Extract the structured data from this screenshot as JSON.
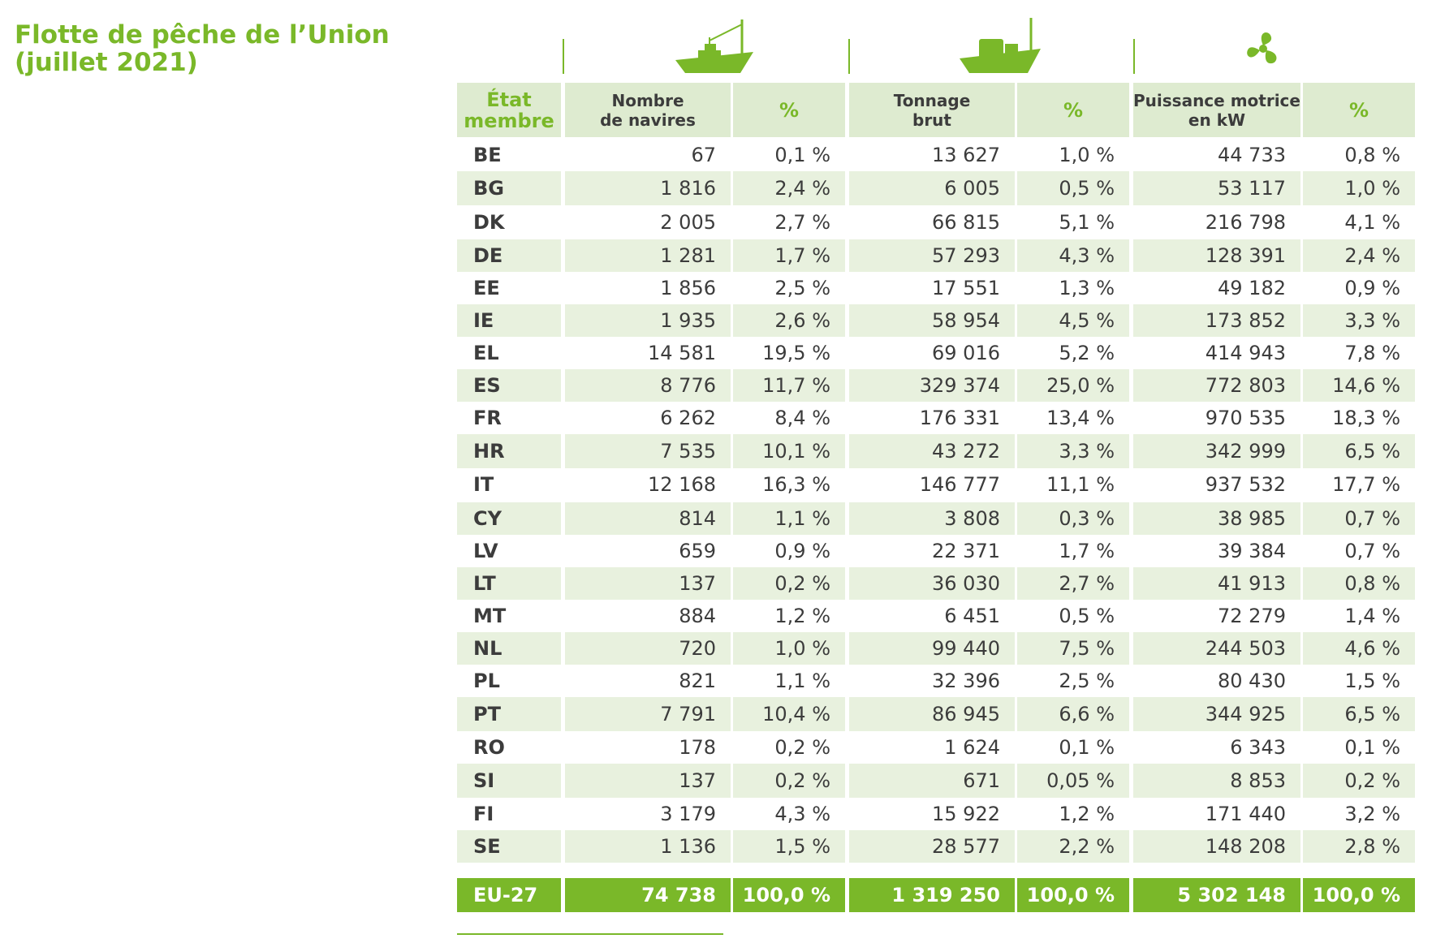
{
  "title": {
    "line1": "Flotte de pêche de l’Union",
    "line2": "(juillet 2021)"
  },
  "icons": [
    "fishing-boat-icon",
    "cargo-boat-icon",
    "propeller-icon"
  ],
  "headers": {
    "state": [
      "État",
      "membre"
    ],
    "vessels": [
      "Nombre",
      "de navires"
    ],
    "tonnage": [
      "Tonnage",
      "brut"
    ],
    "power": [
      "Puissance motrice",
      "en kW"
    ],
    "pct": "%"
  },
  "rows": [
    {
      "code": "BE",
      "vessels": "67",
      "vessels_pct": "0,1 %",
      "tonnage": "13 627",
      "tonnage_pct": "1,0 %",
      "power": "44 733",
      "power_pct": "0,8 %"
    },
    {
      "code": "BG",
      "vessels": "1 816",
      "vessels_pct": "2,4 %",
      "tonnage": "6 005",
      "tonnage_pct": "0,5 %",
      "power": "53 117",
      "power_pct": "1,0 %"
    },
    {
      "code": "DK",
      "vessels": "2 005",
      "vessels_pct": "2,7 %",
      "tonnage": "66 815",
      "tonnage_pct": "5,1 %",
      "power": "216 798",
      "power_pct": "4,1 %"
    },
    {
      "code": "DE",
      "vessels": "1 281",
      "vessels_pct": "1,7 %",
      "tonnage": "57 293",
      "tonnage_pct": "4,3 %",
      "power": "128 391",
      "power_pct": "2,4 %"
    },
    {
      "code": "EE",
      "vessels": "1 856",
      "vessels_pct": "2,5 %",
      "tonnage": "17 551",
      "tonnage_pct": "1,3 %",
      "power": "49 182",
      "power_pct": "0,9 %"
    },
    {
      "code": "IE",
      "vessels": "1 935",
      "vessels_pct": "2,6 %",
      "tonnage": "58 954",
      "tonnage_pct": "4,5 %",
      "power": "173 852",
      "power_pct": "3,3 %"
    },
    {
      "code": "EL",
      "vessels": "14 581",
      "vessels_pct": "19,5 %",
      "tonnage": "69 016",
      "tonnage_pct": "5,2 %",
      "power": "414 943",
      "power_pct": "7,8 %"
    },
    {
      "code": "ES",
      "vessels": "8 776",
      "vessels_pct": "11,7 %",
      "tonnage": "329 374",
      "tonnage_pct": "25,0 %",
      "power": "772 803",
      "power_pct": "14,6 %"
    },
    {
      "code": "FR",
      "vessels": "6 262",
      "vessels_pct": "8,4 %",
      "tonnage": "176 331",
      "tonnage_pct": "13,4 %",
      "power": "970 535",
      "power_pct": "18,3 %"
    },
    {
      "code": "HR",
      "vessels": "7 535",
      "vessels_pct": "10,1 %",
      "tonnage": "43 272",
      "tonnage_pct": "3,3 %",
      "power": "342 999",
      "power_pct": "6,5 %"
    },
    {
      "code": "IT",
      "vessels": "12 168",
      "vessels_pct": "16,3 %",
      "tonnage": "146 777",
      "tonnage_pct": "11,1 %",
      "power": "937 532",
      "power_pct": "17,7 %"
    },
    {
      "code": "CY",
      "vessels": "814",
      "vessels_pct": "1,1 %",
      "tonnage": "3 808",
      "tonnage_pct": "0,3 %",
      "power": "38 985",
      "power_pct": "0,7 %"
    },
    {
      "code": "LV",
      "vessels": "659",
      "vessels_pct": "0,9 %",
      "tonnage": "22 371",
      "tonnage_pct": "1,7 %",
      "power": "39 384",
      "power_pct": "0,7 %"
    },
    {
      "code": "LT",
      "vessels": "137",
      "vessels_pct": "0,2 %",
      "tonnage": "36 030",
      "tonnage_pct": "2,7 %",
      "power": "41 913",
      "power_pct": "0,8 %"
    },
    {
      "code": "MT",
      "vessels": "884",
      "vessels_pct": "1,2 %",
      "tonnage": "6 451",
      "tonnage_pct": "0,5 %",
      "power": "72 279",
      "power_pct": "1,4 %"
    },
    {
      "code": "NL",
      "vessels": "720",
      "vessels_pct": "1,0 %",
      "tonnage": "99 440",
      "tonnage_pct": "7,5 %",
      "power": "244 503",
      "power_pct": "4,6 %"
    },
    {
      "code": "PL",
      "vessels": "821",
      "vessels_pct": "1,1 %",
      "tonnage": "32 396",
      "tonnage_pct": "2,5 %",
      "power": "80 430",
      "power_pct": "1,5 %"
    },
    {
      "code": "PT",
      "vessels": "7 791",
      "vessels_pct": "10,4 %",
      "tonnage": "86 945",
      "tonnage_pct": "6,6 %",
      "power": "344 925",
      "power_pct": "6,5 %"
    },
    {
      "code": "RO",
      "vessels": "178",
      "vessels_pct": "0,2 %",
      "tonnage": "1 624",
      "tonnage_pct": "0,1 %",
      "power": "6 343",
      "power_pct": "0,1 %"
    },
    {
      "code": "SI",
      "vessels": "137",
      "vessels_pct": "0,2 %",
      "tonnage": "671",
      "tonnage_pct": "0,05 %",
      "power": "8 853",
      "power_pct": "0,2 %"
    },
    {
      "code": "FI",
      "vessels": "3 179",
      "vessels_pct": "4,3 %",
      "tonnage": "15 922",
      "tonnage_pct": "1,2 %",
      "power": "171 440",
      "power_pct": "3,2 %"
    },
    {
      "code": "SE",
      "vessels": "1 136",
      "vessels_pct": "1,5 %",
      "tonnage": "28 577",
      "tonnage_pct": "2,2 %",
      "power": "148 208",
      "power_pct": "2,8 %"
    }
  ],
  "total": {
    "code": "EU-27",
    "vessels": "74 738",
    "vessels_pct": "100,0 %",
    "tonnage": "1 319 250",
    "tonnage_pct": "100,0 %",
    "power": "5 302 148",
    "power_pct": "100,0 %"
  },
  "colors": {
    "accent": "#7ab829",
    "header_bg": "#deebd0",
    "stripe_bg": "#e8f1de"
  }
}
